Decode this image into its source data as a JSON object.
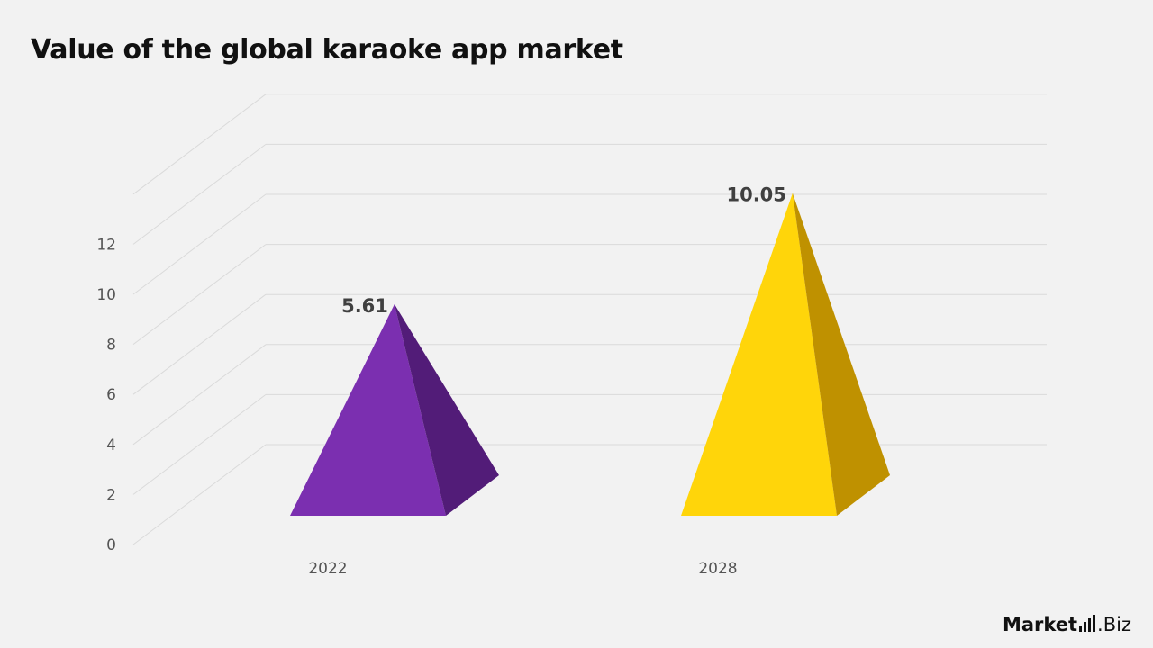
{
  "title": "Value of the global karaoke app market",
  "chart_data": {
    "type": "bar",
    "style": "3d-pyramid",
    "categories": [
      "2022",
      "2028"
    ],
    "values": [
      5.61,
      10.05
    ],
    "data_labels": [
      "5.61",
      "10.05"
    ],
    "yticks": [
      "0",
      "2",
      "4",
      "6",
      "8",
      "10",
      "12"
    ],
    "ylim": [
      0,
      12
    ],
    "grid": true,
    "colors": {
      "2022": {
        "front": "#7b2fb0",
        "side": "#521c78"
      },
      "2028": {
        "front": "#ffd50a",
        "side": "#bf9100"
      }
    }
  },
  "logo": {
    "word1": "Market",
    "word2": ".Biz"
  }
}
